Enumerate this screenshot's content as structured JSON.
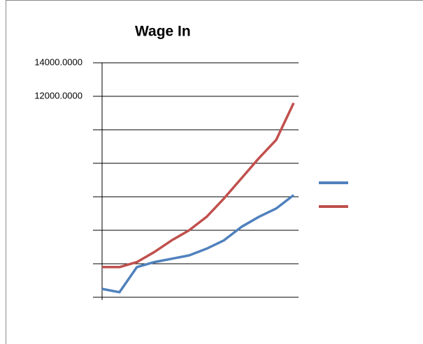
{
  "chart_data": {
    "type": "line",
    "title": "Wage In",
    "series": [
      {
        "color": "#c0504d",
        "values": [
          1800,
          1800,
          2100,
          2700,
          3400,
          4000,
          4800,
          5900,
          7100,
          8300,
          9400,
          11600
        ]
      },
      {
        "color": "#4f81bd",
        "values": [
          500,
          300,
          1800,
          2100,
          2300,
          2500,
          2900,
          3400,
          4200,
          4800,
          5300,
          6100
        ]
      }
    ],
    "ylim": [
      0,
      14000
    ],
    "yticks": [
      {
        "value": 12000,
        "label": "12000.0000"
      },
      {
        "value": 14000,
        "label": "14000.0000"
      }
    ],
    "ygrid": [
      2000,
      4000,
      6000,
      8000,
      10000,
      12000,
      14000
    ],
    "legend": "right"
  }
}
